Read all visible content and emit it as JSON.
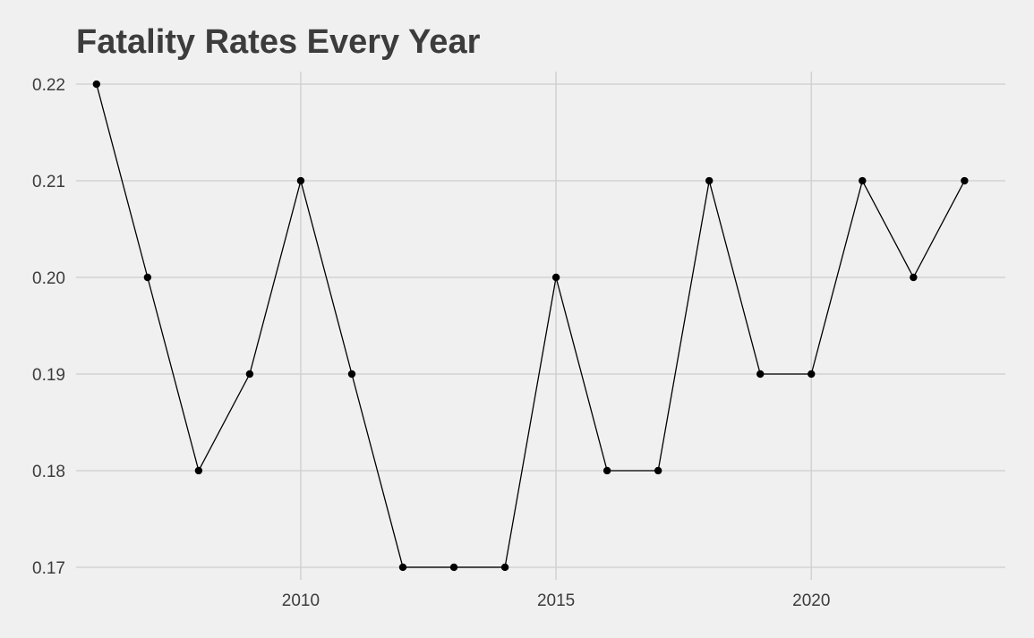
{
  "chart_data": {
    "type": "line",
    "title": "Fatality Rates Every Year",
    "xlabel": "",
    "ylabel": "",
    "x": [
      2006,
      2007,
      2008,
      2009,
      2010,
      2011,
      2012,
      2013,
      2014,
      2015,
      2016,
      2017,
      2018,
      2019,
      2020,
      2021,
      2022,
      2023
    ],
    "series": [
      {
        "values": [
          0.22,
          0.2,
          0.18,
          0.19,
          0.21,
          0.19,
          0.17,
          0.17,
          0.17,
          0.2,
          0.18,
          0.18,
          0.21,
          0.19,
          0.19,
          0.21,
          0.2,
          0.21
        ]
      }
    ],
    "xlim": [
      2005.6,
      2023.8
    ],
    "ylim": [
      0.1687,
      0.2213
    ],
    "x_ticks": [
      2010,
      2015,
      2020
    ],
    "x_tick_labels": [
      "2010",
      "2015",
      "2020"
    ],
    "y_ticks": [
      0.17,
      0.18,
      0.19,
      0.2,
      0.21,
      0.22
    ],
    "y_tick_labels": [
      "0.17",
      "0.18",
      "0.19",
      "0.20",
      "0.21",
      "0.22"
    ],
    "grid": true,
    "legend": "none",
    "colors": {
      "background": "#f0f0f0",
      "grid": "#d2d2d2",
      "line": "#000000",
      "text": "#3c3c3c"
    }
  }
}
